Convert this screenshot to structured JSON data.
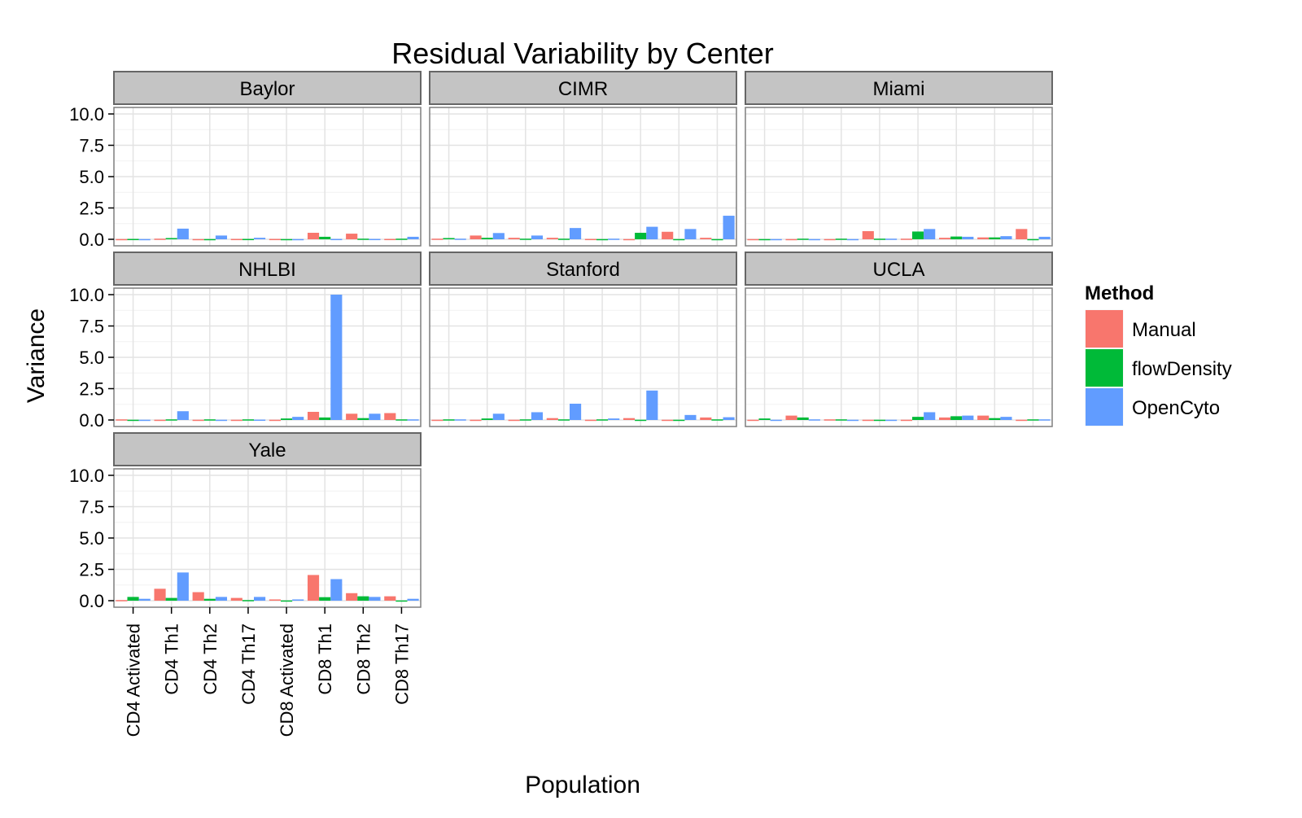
{
  "chart_data": {
    "type": "bar",
    "title": "Residual Variability by Center",
    "xlabel": "Population",
    "ylabel": "Variance",
    "ylim": [
      0,
      10
    ],
    "yticks": [
      "0.0",
      "2.5",
      "5.0",
      "7.5",
      "10.0"
    ],
    "ytick_values": [
      0,
      2.5,
      5,
      7.5,
      10
    ],
    "grid": true,
    "legend": {
      "title": "Method",
      "placement": "right"
    },
    "categories": [
      "CD4 Activated",
      "CD4 Th1",
      "CD4 Th2",
      "CD4 Th17",
      "CD8 Activated",
      "CD8 Th1",
      "CD8 Th2",
      "CD8 Th17"
    ],
    "series": [
      {
        "name": "Manual",
        "color": "#F8766D"
      },
      {
        "name": "flowDensity",
        "color": "#00BA38"
      },
      {
        "name": "OpenCyto",
        "color": "#619CFF"
      }
    ],
    "panels": [
      {
        "center": "Baylor",
        "values": {
          "Manual": [
            0.02,
            0.05,
            0.02,
            0.03,
            0.03,
            0.52,
            0.45,
            0.03
          ],
          "flowDensity": [
            0.03,
            0.1,
            0.02,
            0.03,
            0.02,
            0.2,
            0.05,
            0.05
          ],
          "OpenCyto": [
            0.02,
            0.85,
            0.3,
            0.12,
            0.02,
            0.03,
            0.03,
            0.2
          ]
        }
      },
      {
        "center": "CIMR",
        "values": {
          "Manual": [
            0.05,
            0.3,
            0.12,
            0.12,
            0.03,
            0.02,
            0.6,
            0.12
          ],
          "flowDensity": [
            0.1,
            0.12,
            0.05,
            0.05,
            0.02,
            0.52,
            0.02,
            0.02
          ],
          "OpenCyto": [
            0.05,
            0.5,
            0.3,
            0.9,
            0.05,
            1.0,
            0.82,
            1.88
          ]
        }
      },
      {
        "center": "Miami",
        "values": {
          "Manual": [
            0.02,
            0.02,
            0.02,
            0.65,
            0.05,
            0.12,
            0.15,
            0.82
          ],
          "flowDensity": [
            0.02,
            0.05,
            0.05,
            0.05,
            0.62,
            0.22,
            0.15,
            0.02
          ],
          "OpenCyto": [
            0.02,
            0.02,
            0.02,
            0.05,
            0.82,
            0.2,
            0.25,
            0.2
          ]
        }
      },
      {
        "center": "NHLBI",
        "values": {
          "Manual": [
            0.05,
            0.02,
            0.02,
            0.02,
            0.02,
            0.65,
            0.5,
            0.55
          ],
          "flowDensity": [
            0.02,
            0.05,
            0.05,
            0.05,
            0.12,
            0.2,
            0.15,
            0.05
          ],
          "OpenCyto": [
            0.02,
            0.7,
            0.02,
            0.03,
            0.25,
            10.0,
            0.5,
            0.05
          ]
        }
      },
      {
        "center": "Stanford",
        "values": {
          "Manual": [
            0.02,
            0.02,
            0.02,
            0.15,
            0.02,
            0.15,
            0.02,
            0.2
          ],
          "flowDensity": [
            0.05,
            0.12,
            0.05,
            0.05,
            0.05,
            0.02,
            0.02,
            0.05
          ],
          "OpenCyto": [
            0.05,
            0.5,
            0.62,
            1.3,
            0.12,
            2.35,
            0.4,
            0.22
          ]
        }
      },
      {
        "center": "UCLA",
        "values": {
          "Manual": [
            0.02,
            0.35,
            0.05,
            0.02,
            0.02,
            0.2,
            0.35,
            0.02
          ],
          "flowDensity": [
            0.12,
            0.2,
            0.05,
            0.02,
            0.25,
            0.3,
            0.15,
            0.05
          ],
          "OpenCyto": [
            0.02,
            0.05,
            0.02,
            0.02,
            0.62,
            0.35,
            0.25,
            0.05
          ]
        }
      },
      {
        "center": "Yale",
        "values": {
          "Manual": [
            0.05,
            0.95,
            0.68,
            0.22,
            0.1,
            2.05,
            0.6,
            0.35
          ],
          "flowDensity": [
            0.3,
            0.22,
            0.15,
            0.05,
            0.02,
            0.28,
            0.35,
            0.02
          ],
          "OpenCyto": [
            0.15,
            2.25,
            0.3,
            0.3,
            0.1,
            1.72,
            0.3,
            0.15
          ]
        }
      }
    ]
  }
}
